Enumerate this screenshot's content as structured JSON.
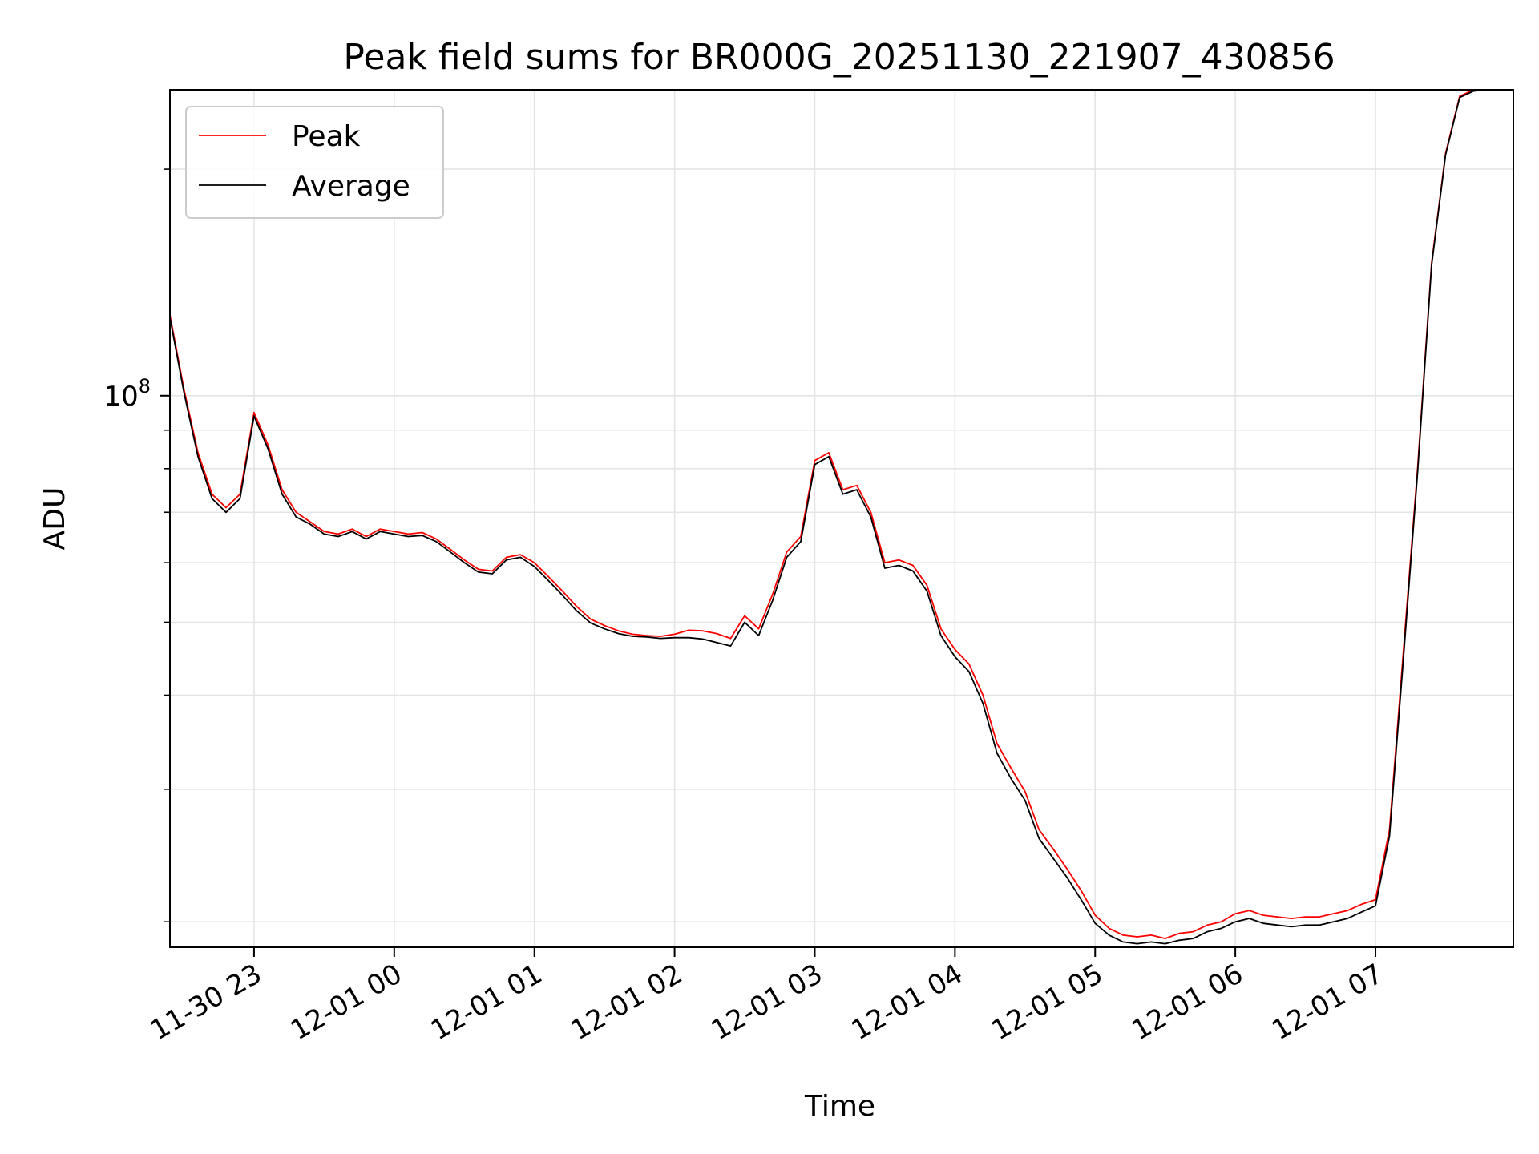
{
  "chart_data": {
    "type": "line",
    "title": "Peak field sums for BR000G_20251130_221907_430856",
    "xlabel": "Time",
    "ylabel": "ADU",
    "x_ticks": [
      "11-30 23",
      "12-01 00",
      "12-01 01",
      "12-01 02",
      "12-01 03",
      "12-01 04",
      "12-01 05",
      "12-01 06",
      "12-01 07"
    ],
    "y_tick_major": {
      "base": "10",
      "exp": "8",
      "value": 100000000
    },
    "y_scale": "log",
    "ylim": [
      18500000,
      255000000
    ],
    "xlim": [
      "2025-11-30 22:24",
      "2025-12-01 07:59"
    ],
    "y_minor_ticks": [
      20000000,
      30000000,
      40000000,
      50000000,
      60000000,
      70000000,
      80000000,
      90000000,
      200000000
    ],
    "grid": true,
    "legend_position": "top-left",
    "x": [
      "2025-11-30 22:24",
      "2025-11-30 22:30",
      "2025-11-30 22:36",
      "2025-11-30 22:42",
      "2025-11-30 22:48",
      "2025-11-30 22:54",
      "2025-11-30 23:00",
      "2025-11-30 23:06",
      "2025-11-30 23:12",
      "2025-11-30 23:18",
      "2025-11-30 23:24",
      "2025-11-30 23:30",
      "2025-11-30 23:36",
      "2025-11-30 23:42",
      "2025-11-30 23:48",
      "2025-11-30 23:54",
      "2025-12-01 00:00",
      "2025-12-01 00:06",
      "2025-12-01 00:12",
      "2025-12-01 00:18",
      "2025-12-01 00:24",
      "2025-12-01 00:30",
      "2025-12-01 00:36",
      "2025-12-01 00:42",
      "2025-12-01 00:48",
      "2025-12-01 00:54",
      "2025-12-01 01:00",
      "2025-12-01 01:06",
      "2025-12-01 01:12",
      "2025-12-01 01:18",
      "2025-12-01 01:24",
      "2025-12-01 01:30",
      "2025-12-01 01:36",
      "2025-12-01 01:42",
      "2025-12-01 01:48",
      "2025-12-01 01:54",
      "2025-12-01 02:00",
      "2025-12-01 02:06",
      "2025-12-01 02:12",
      "2025-12-01 02:18",
      "2025-12-01 02:24",
      "2025-12-01 02:30",
      "2025-12-01 02:36",
      "2025-12-01 02:42",
      "2025-12-01 02:48",
      "2025-12-01 02:54",
      "2025-12-01 03:00",
      "2025-12-01 03:06",
      "2025-12-01 03:12",
      "2025-12-01 03:18",
      "2025-12-01 03:24",
      "2025-12-01 03:30",
      "2025-12-01 03:36",
      "2025-12-01 03:42",
      "2025-12-01 03:48",
      "2025-12-01 03:54",
      "2025-12-01 04:00",
      "2025-12-01 04:06",
      "2025-12-01 04:12",
      "2025-12-01 04:18",
      "2025-12-01 04:24",
      "2025-12-01 04:30",
      "2025-12-01 04:36",
      "2025-12-01 04:42",
      "2025-12-01 04:48",
      "2025-12-01 04:54",
      "2025-12-01 05:00",
      "2025-12-01 05:06",
      "2025-12-01 05:12",
      "2025-12-01 05:18",
      "2025-12-01 05:24",
      "2025-12-01 05:30",
      "2025-12-01 05:36",
      "2025-12-01 05:42",
      "2025-12-01 05:48",
      "2025-12-01 05:54",
      "2025-12-01 06:00",
      "2025-12-01 06:06",
      "2025-12-01 06:12",
      "2025-12-01 06:18",
      "2025-12-01 06:24",
      "2025-12-01 06:30",
      "2025-12-01 06:36",
      "2025-12-01 06:42",
      "2025-12-01 06:48",
      "2025-12-01 06:54",
      "2025-12-01 07:00",
      "2025-12-01 07:06",
      "2025-12-01 07:12",
      "2025-12-01 07:18",
      "2025-12-01 07:24",
      "2025-12-01 07:30",
      "2025-12-01 07:36",
      "2025-12-01 07:42",
      "2025-12-01 07:48"
    ],
    "series": [
      {
        "name": "Peak",
        "color": "#ff0000",
        "values": [
          128000000,
          102000000,
          84000000,
          74000000,
          71000000,
          74000000,
          95000000,
          86000000,
          75000000,
          70000000,
          68000000,
          66000000,
          65500000,
          66500000,
          65000000,
          66500000,
          66000000,
          65500000,
          65800000,
          64500000,
          62500000,
          60500000,
          58800000,
          58500000,
          61000000,
          61500000,
          60000000,
          57500000,
          55000000,
          52500000,
          50500000,
          49500000,
          48700000,
          48200000,
          48000000,
          47900000,
          48200000,
          48800000,
          48700000,
          48300000,
          47600000,
          51000000,
          49000000,
          54500000,
          62000000,
          65000000,
          82000000,
          84000000,
          75000000,
          76000000,
          70000000,
          60000000,
          60500000,
          59500000,
          56000000,
          49000000,
          46000000,
          44000000,
          40000000,
          34500000,
          32000000,
          29800000,
          26500000,
          25000000,
          23500000,
          22000000,
          20400000,
          19600000,
          19200000,
          19100000,
          19200000,
          19000000,
          19300000,
          19400000,
          19800000,
          20000000,
          20500000,
          20700000,
          20400000,
          20300000,
          20200000,
          20300000,
          20300000,
          20500000,
          20700000,
          21100000,
          21400000,
          26500000,
          46000000,
          80000000,
          150000000,
          210000000,
          250000000,
          255000000,
          256000000
        ]
      },
      {
        "name": "Average",
        "color": "#000000",
        "values": [
          127000000,
          101000000,
          83000000,
          73000000,
          70000000,
          73000000,
          94000000,
          85000000,
          74000000,
          69000000,
          67500000,
          65500000,
          65000000,
          66000000,
          64500000,
          66000000,
          65500000,
          65000000,
          65200000,
          64000000,
          62000000,
          60000000,
          58300000,
          58000000,
          60500000,
          61000000,
          59300000,
          56800000,
          54300000,
          51800000,
          49900000,
          49000000,
          48300000,
          47900000,
          47800000,
          47600000,
          47700000,
          47700000,
          47500000,
          47000000,
          46500000,
          50000000,
          48000000,
          53500000,
          61000000,
          64000000,
          81000000,
          83000000,
          74000000,
          75000000,
          69000000,
          59000000,
          59500000,
          58500000,
          55000000,
          48000000,
          45000000,
          43000000,
          39000000,
          33500000,
          31000000,
          29000000,
          25800000,
          24300000,
          22900000,
          21400000,
          19900000,
          19200000,
          18800000,
          18700000,
          18800000,
          18700000,
          18900000,
          19000000,
          19400000,
          19600000,
          20000000,
          20200000,
          19900000,
          19800000,
          19700000,
          19800000,
          19800000,
          20000000,
          20200000,
          20600000,
          21000000,
          26000000,
          45000000,
          79000000,
          149000000,
          209000000,
          249000000,
          254000000,
          255000000
        ]
      }
    ]
  }
}
